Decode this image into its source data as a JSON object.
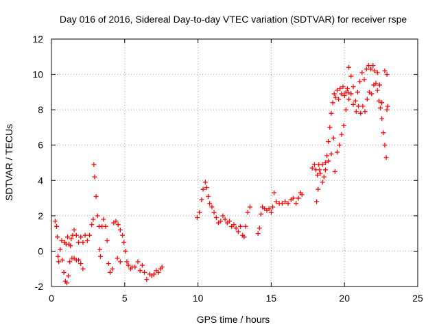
{
  "chart_data": {
    "type": "scatter",
    "title": "Day 016 of 2016, Sidereal Day-to-day VTEC variation (SDTVAR) for receiver rspe",
    "xlabel": "GPS time / hours",
    "ylabel": "SDTVAR / TECUs",
    "xlim": [
      0,
      25
    ],
    "ylim": [
      -2,
      12
    ],
    "xticks": [
      "0",
      "5",
      "10",
      "15",
      "20",
      "25"
    ],
    "yticks": [
      "-2",
      "0",
      "2",
      "4",
      "6",
      "8",
      "10",
      "12"
    ],
    "grid": true,
    "marker": "+",
    "series": [
      {
        "name": "SDTVAR",
        "color": "#ff0000",
        "points": [
          [
            0.25,
            1.7
          ],
          [
            0.35,
            1.4
          ],
          [
            0.4,
            0.8
          ],
          [
            0.45,
            -0.3
          ],
          [
            0.5,
            -0.6
          ],
          [
            0.6,
            0.1
          ],
          [
            0.7,
            0.6
          ],
          [
            0.75,
            -0.5
          ],
          [
            0.85,
            -1.2
          ],
          [
            0.95,
            -1.7
          ],
          [
            1.05,
            -1.8
          ],
          [
            1.15,
            -1.4
          ],
          [
            1.25,
            -0.6
          ],
          [
            1.3,
            0.3
          ],
          [
            1.4,
            -0.4
          ],
          [
            1.55,
            -0.4
          ],
          [
            1.7,
            -0.5
          ],
          [
            1.85,
            -0.5
          ],
          [
            2.0,
            -0.7
          ],
          [
            2.15,
            -1.0
          ],
          [
            0.9,
            0.5
          ],
          [
            1.0,
            0.4
          ],
          [
            1.1,
            0.8
          ],
          [
            1.2,
            0.4
          ],
          [
            1.35,
            0.7
          ],
          [
            1.45,
            0.9
          ],
          [
            1.55,
            1.2
          ],
          [
            1.7,
            0.9
          ],
          [
            1.85,
            0.5
          ],
          [
            2.0,
            0.8
          ],
          [
            2.15,
            0.5
          ],
          [
            2.3,
            0.9
          ],
          [
            2.45,
            0.6
          ],
          [
            2.6,
            0.9
          ],
          [
            2.75,
            1.5
          ],
          [
            2.85,
            1.8
          ],
          [
            2.9,
            4.9
          ],
          [
            2.95,
            4.2
          ],
          [
            3.05,
            3.1
          ],
          [
            3.15,
            2.0
          ],
          [
            3.25,
            1.4
          ],
          [
            3.3,
            0.1
          ],
          [
            3.35,
            -0.3
          ],
          [
            3.45,
            1.4
          ],
          [
            3.55,
            1.8
          ],
          [
            3.7,
            1.4
          ],
          [
            3.8,
            0.6
          ],
          [
            3.9,
            -0.7
          ],
          [
            4.0,
            -1.2
          ],
          [
            4.15,
            -1.0
          ],
          [
            4.25,
            1.6
          ],
          [
            4.4,
            1.7
          ],
          [
            4.55,
            1.5
          ],
          [
            4.7,
            1.2
          ],
          [
            4.85,
            0.9
          ],
          [
            4.95,
            0.5
          ],
          [
            5.05,
            0.0
          ],
          [
            5.15,
            -0.6
          ],
          [
            5.25,
            -0.8
          ],
          [
            5.4,
            -1.0
          ],
          [
            4.5,
            -0.4
          ],
          [
            4.7,
            -0.6
          ],
          [
            5.5,
            -0.9
          ],
          [
            5.7,
            -0.9
          ],
          [
            5.9,
            -0.6
          ],
          [
            6.05,
            -1.1
          ],
          [
            6.2,
            -0.8
          ],
          [
            6.35,
            -1.2
          ],
          [
            6.5,
            -1.6
          ],
          [
            6.7,
            -1.3
          ],
          [
            6.85,
            -1.4
          ],
          [
            7.0,
            -1.3
          ],
          [
            7.15,
            -1.1
          ],
          [
            7.3,
            -1.2
          ],
          [
            7.45,
            -1.0
          ],
          [
            7.55,
            -0.9
          ],
          [
            9.95,
            1.9
          ],
          [
            10.1,
            2.2
          ],
          [
            10.25,
            2.9
          ],
          [
            10.35,
            3.5
          ],
          [
            10.5,
            3.9
          ],
          [
            10.6,
            3.6
          ],
          [
            10.7,
            3.1
          ],
          [
            10.8,
            2.7
          ],
          [
            10.95,
            2.5
          ],
          [
            11.1,
            2.2
          ],
          [
            11.25,
            1.9
          ],
          [
            11.4,
            1.6
          ],
          [
            11.55,
            1.7
          ],
          [
            11.7,
            2.0
          ],
          [
            11.85,
            1.8
          ],
          [
            12.0,
            1.6
          ],
          [
            12.15,
            1.7
          ],
          [
            12.3,
            1.4
          ],
          [
            12.45,
            1.5
          ],
          [
            12.6,
            1.3
          ],
          [
            12.75,
            1.1
          ],
          [
            12.9,
            1.4
          ],
          [
            13.05,
            0.9
          ],
          [
            13.15,
            0.8
          ],
          [
            13.25,
            1.4
          ],
          [
            13.4,
            2.2
          ],
          [
            13.55,
            2.5
          ],
          [
            14.1,
            1.0
          ],
          [
            14.2,
            1.3
          ],
          [
            14.3,
            2.1
          ],
          [
            14.4,
            2.5
          ],
          [
            14.55,
            2.4
          ],
          [
            14.7,
            2.3
          ],
          [
            14.85,
            2.4
          ],
          [
            15.0,
            2.2
          ],
          [
            15.1,
            2.5
          ],
          [
            15.2,
            3.3
          ],
          [
            15.35,
            2.8
          ],
          [
            15.55,
            2.7
          ],
          [
            15.75,
            2.7
          ],
          [
            15.95,
            2.8
          ],
          [
            16.15,
            2.7
          ],
          [
            16.35,
            2.9
          ],
          [
            16.5,
            3.0
          ],
          [
            16.7,
            2.7
          ],
          [
            16.85,
            3.0
          ],
          [
            17.0,
            3.3
          ],
          [
            17.1,
            3.2
          ],
          [
            17.8,
            4.7
          ],
          [
            17.95,
            4.9
          ],
          [
            18.05,
            4.6
          ],
          [
            18.15,
            4.3
          ],
          [
            18.25,
            4.9
          ],
          [
            18.35,
            4.4
          ],
          [
            18.5,
            4.9
          ],
          [
            18.6,
            4.2
          ],
          [
            18.7,
            5.0
          ],
          [
            18.8,
            5.4
          ],
          [
            18.9,
            6.2
          ],
          [
            19.0,
            7.0
          ],
          [
            19.1,
            7.8
          ],
          [
            19.2,
            8.4
          ],
          [
            19.3,
            8.9
          ],
          [
            19.4,
            8.7
          ],
          [
            19.5,
            9.1
          ],
          [
            19.6,
            8.6
          ],
          [
            19.7,
            9.2
          ],
          [
            19.8,
            8.9
          ],
          [
            19.9,
            9.3
          ],
          [
            20.0,
            8.8
          ],
          [
            20.1,
            9.0
          ],
          [
            20.2,
            9.2
          ],
          [
            20.3,
            8.6
          ],
          [
            20.45,
            8.9
          ],
          [
            20.6,
            9.3
          ],
          [
            20.75,
            8.5
          ],
          [
            20.9,
            9.0
          ],
          [
            21.05,
            9.6
          ],
          [
            21.2,
            10.1
          ],
          [
            21.35,
            9.7
          ],
          [
            21.5,
            10.3
          ],
          [
            21.65,
            10.5
          ],
          [
            21.8,
            10.3
          ],
          [
            21.95,
            10.5
          ],
          [
            22.05,
            10.2
          ],
          [
            22.15,
            9.5
          ],
          [
            22.25,
            9.1
          ],
          [
            22.35,
            8.5
          ],
          [
            22.45,
            8.1
          ],
          [
            22.55,
            7.5
          ],
          [
            22.65,
            6.7
          ],
          [
            22.75,
            6.0
          ],
          [
            22.85,
            5.3
          ],
          [
            18.1,
            2.8
          ],
          [
            18.2,
            3.5
          ],
          [
            18.3,
            4.6
          ],
          [
            18.5,
            3.9
          ],
          [
            18.7,
            4.6
          ],
          [
            18.9,
            5.1
          ],
          [
            19.1,
            5.5
          ],
          [
            19.25,
            6.4
          ],
          [
            19.35,
            4.5
          ],
          [
            19.5,
            5.6
          ],
          [
            19.65,
            6.0
          ],
          [
            19.8,
            6.6
          ],
          [
            19.95,
            7.1
          ],
          [
            20.1,
            8.0
          ],
          [
            20.25,
            9.0
          ],
          [
            20.3,
            10.4
          ],
          [
            20.45,
            9.9
          ],
          [
            20.6,
            8.3
          ],
          [
            20.8,
            7.9
          ],
          [
            20.95,
            8.2
          ],
          [
            21.1,
            7.8
          ],
          [
            21.25,
            8.2
          ],
          [
            21.4,
            7.9
          ],
          [
            21.55,
            8.6
          ],
          [
            21.7,
            9.0
          ],
          [
            21.85,
            8.9
          ],
          [
            22.0,
            9.4
          ],
          [
            22.25,
            10.1
          ],
          [
            22.4,
            9.4
          ],
          [
            22.55,
            8.4
          ],
          [
            22.75,
            10.2
          ],
          [
            22.9,
            10.0
          ],
          [
            22.95,
            8.2
          ],
          [
            22.9,
            8.0
          ]
        ]
      }
    ]
  }
}
